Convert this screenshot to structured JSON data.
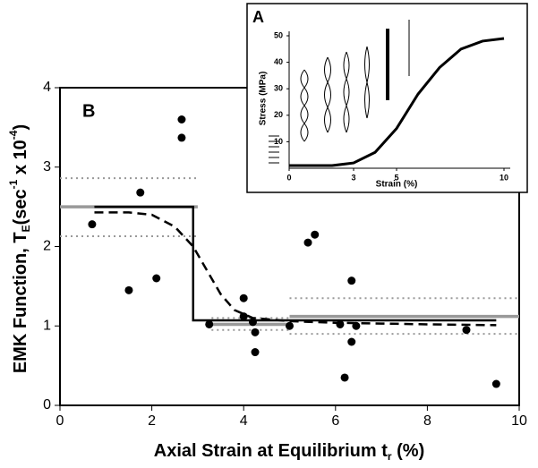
{
  "chart_data": [
    {
      "type": "scatter",
      "label": "B",
      "xlabel_parts": [
        "Axial Strain at Equilibrium t",
        "r",
        " (%)"
      ],
      "ylabel_parts": [
        "EMK Function, T",
        "E",
        "(sec",
        "-1",
        " x 10",
        "-4",
        ")"
      ],
      "xlim": [
        0,
        10
      ],
      "ylim": [
        0,
        4
      ],
      "xticks": [
        0,
        2,
        4,
        6,
        8,
        10
      ],
      "yticks": [
        0,
        1,
        2,
        3,
        4
      ],
      "point_color": "#000000",
      "x": [
        0.7,
        1.5,
        1.75,
        2.1,
        2.65,
        2.65,
        3.25,
        4.0,
        4.0,
        4.2,
        4.25,
        4.25,
        5.0,
        5.4,
        5.55,
        6.1,
        6.2,
        6.35,
        6.35,
        6.45,
        8.85,
        9.5
      ],
      "y": [
        2.28,
        1.45,
        2.68,
        1.6,
        3.6,
        3.37,
        1.02,
        1.35,
        1.12,
        1.05,
        0.92,
        0.67,
        1.0,
        2.05,
        2.15,
        1.02,
        0.35,
        1.57,
        0.8,
        1.0,
        0.95,
        0.27
      ],
      "lines": [
        {
          "style": "solid",
          "color": "#999999",
          "width": 3.5,
          "x": [
            0,
            3,
            null,
            3.3,
            5,
            null,
            5,
            10
          ],
          "y": [
            2.5,
            2.5,
            null,
            1.02,
            1.02,
            null,
            1.12,
            1.12
          ]
        },
        {
          "style": "dotted",
          "color": "#999999",
          "width": 2,
          "x": [
            0,
            3,
            null,
            3.3,
            5,
            null,
            5,
            10
          ],
          "y": [
            2.86,
            2.86,
            null,
            1.1,
            1.1,
            null,
            1.35,
            1.35
          ]
        },
        {
          "style": "dotted",
          "color": "#999999",
          "width": 2,
          "x": [
            0,
            3,
            null,
            3.3,
            5,
            null,
            5,
            10
          ],
          "y": [
            2.13,
            2.13,
            null,
            0.95,
            0.95,
            null,
            0.9,
            0.9
          ]
        },
        {
          "style": "solid",
          "color": "#000000",
          "width": 2.5,
          "x": [
            0.75,
            2.9,
            2.9,
            9.5
          ],
          "y": [
            2.5,
            2.5,
            1.07,
            1.07
          ]
        },
        {
          "style": "dashed",
          "color": "#000000",
          "width": 2.5,
          "x": [
            0.75,
            1.5,
            2,
            2.5,
            2.9,
            3.2,
            3.5,
            3.8,
            4.2,
            5,
            6,
            7,
            8,
            9.5
          ],
          "y": [
            2.43,
            2.43,
            2.4,
            2.25,
            2.0,
            1.7,
            1.4,
            1.2,
            1.1,
            1.06,
            1.04,
            1.03,
            1.02,
            1.01
          ]
        }
      ]
    },
    {
      "type": "line",
      "label": "A",
      "xlabel": "Strain (%)",
      "ylabel": "Stress (MPa)",
      "xlim": [
        0,
        10
      ],
      "ylim": [
        0,
        50
      ],
      "xticks": [
        0,
        3,
        5,
        10
      ],
      "yticks": [
        10,
        20,
        30,
        40,
        50
      ],
      "lines": [
        {
          "style": "solid",
          "color": "#000000",
          "width": 3,
          "x": [
            0,
            2,
            3,
            4,
            5,
            6,
            7,
            8,
            9,
            10
          ],
          "y": [
            1,
            1,
            2,
            6,
            15,
            28,
            38,
            45,
            48,
            49
          ]
        }
      ]
    }
  ]
}
